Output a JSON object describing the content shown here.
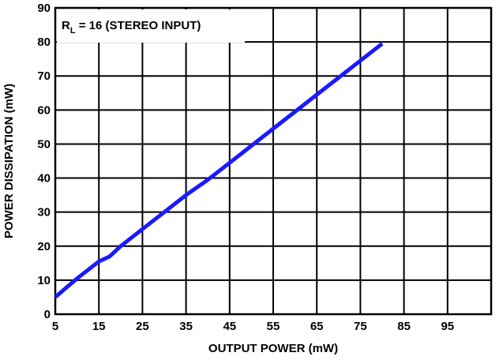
{
  "chart_data": {
    "type": "line",
    "title": "",
    "xlabel": "OUTPUT POWER (mW)",
    "ylabel": "POWER DISSIPATION (mW)",
    "xlim": [
      5,
      105
    ],
    "ylim": [
      0,
      90
    ],
    "x_ticks": [
      5,
      15,
      25,
      35,
      45,
      55,
      65,
      75,
      85,
      95
    ],
    "y_ticks": [
      0,
      10,
      20,
      30,
      40,
      50,
      60,
      70,
      80,
      90
    ],
    "grid": true,
    "annotation": {
      "prefix": "R",
      "subscript": "L",
      "suffix": " = 16 (STEREO INPUT)"
    },
    "series": [
      {
        "color": "#1a1aff",
        "x": [
          5,
          10,
          15,
          17.5,
          20,
          25,
          30,
          35,
          40,
          45,
          50,
          55,
          60,
          65,
          70,
          75,
          80
        ],
        "y": [
          5,
          10.5,
          15.5,
          17,
          20,
          25,
          30,
          35,
          39.5,
          44.5,
          49.5,
          54.5,
          59.5,
          64.5,
          69.5,
          74.5,
          79.5
        ]
      }
    ]
  }
}
